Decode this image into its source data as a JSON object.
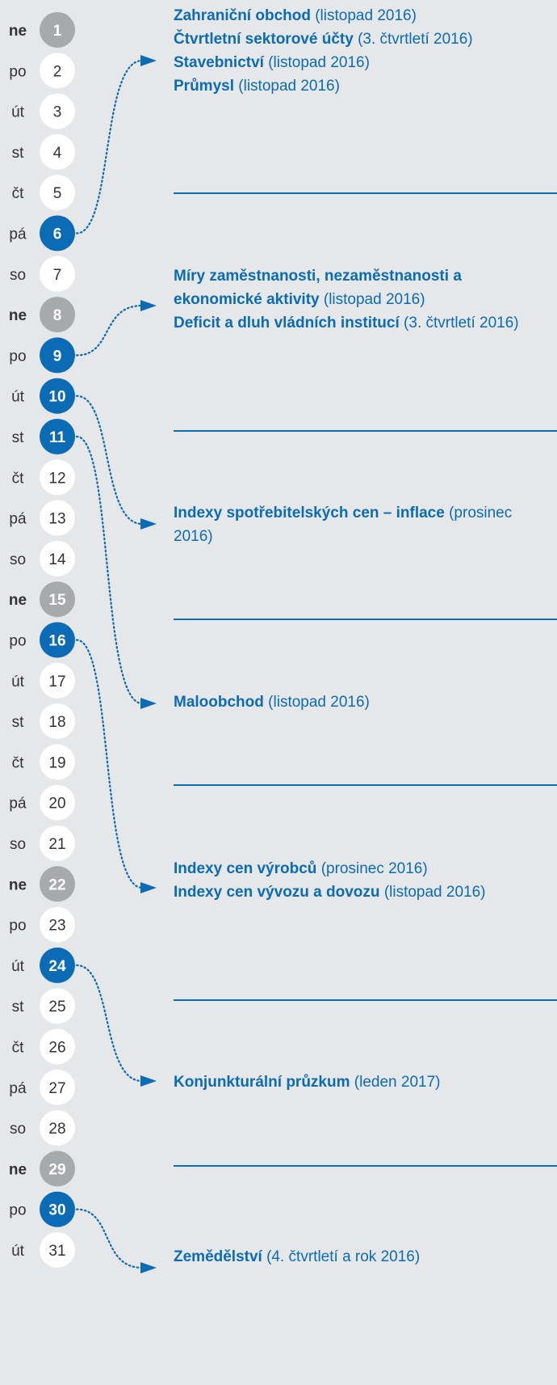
{
  "days": [
    {
      "weekday": "ne",
      "day": "1",
      "sunday": true
    },
    {
      "weekday": "po",
      "day": "2"
    },
    {
      "weekday": "út",
      "day": "3"
    },
    {
      "weekday": "st",
      "day": "4"
    },
    {
      "weekday": "čt",
      "day": "5"
    },
    {
      "weekday": "pá",
      "day": "6",
      "release": true
    },
    {
      "weekday": "so",
      "day": "7"
    },
    {
      "weekday": "ne",
      "day": "8",
      "sunday": true
    },
    {
      "weekday": "po",
      "day": "9",
      "release": true
    },
    {
      "weekday": "út",
      "day": "10",
      "release": true
    },
    {
      "weekday": "st",
      "day": "11",
      "release": true
    },
    {
      "weekday": "čt",
      "day": "12"
    },
    {
      "weekday": "pá",
      "day": "13"
    },
    {
      "weekday": "so",
      "day": "14"
    },
    {
      "weekday": "ne",
      "day": "15",
      "sunday": true
    },
    {
      "weekday": "po",
      "day": "16",
      "release": true
    },
    {
      "weekday": "út",
      "day": "17"
    },
    {
      "weekday": "st",
      "day": "18"
    },
    {
      "weekday": "čt",
      "day": "19"
    },
    {
      "weekday": "pá",
      "day": "20"
    },
    {
      "weekday": "so",
      "day": "21"
    },
    {
      "weekday": "ne",
      "day": "22",
      "sunday": true
    },
    {
      "weekday": "po",
      "day": "23"
    },
    {
      "weekday": "út",
      "day": "24",
      "release": true
    },
    {
      "weekday": "st",
      "day": "25"
    },
    {
      "weekday": "čt",
      "day": "26"
    },
    {
      "weekday": "pá",
      "day": "27"
    },
    {
      "weekday": "so",
      "day": "28"
    },
    {
      "weekday": "ne",
      "day": "29",
      "sunday": true
    },
    {
      "weekday": "po",
      "day": "30",
      "release": true
    },
    {
      "weekday": "út",
      "day": "31"
    }
  ],
  "events": [
    {
      "items": [
        {
          "name": "Zahraniční obchod",
          "period": "(listopad 2016)"
        },
        {
          "name": "Čtvrtletní sektorové účty",
          "period": "(3. čtvrtletí 2016)"
        },
        {
          "name": "Stavebnictví",
          "period": "(listopad 2016)"
        },
        {
          "name": "Průmysl",
          "period": "(listopad 2016)"
        }
      ]
    },
    {
      "items": [
        {
          "name": "Míry zaměstnanosti, nezaměstnanosti a ekonomické aktivity",
          "period": "(listopad 2016)"
        },
        {
          "name": "Deficit a dluh vládních institucí",
          "period": "(3. čtvrtletí 2016)"
        }
      ]
    },
    {
      "items": [
        {
          "name": "Indexy spotřebitelských cen – inflace",
          "period": "(prosinec 2016)"
        }
      ]
    },
    {
      "items": [
        {
          "name": "Maloobchod",
          "period": "(listopad 2016)"
        }
      ]
    },
    {
      "items": [
        {
          "name": "Indexy cen výrobců",
          "period": "(prosinec 2016)"
        },
        {
          "name": "Indexy cen vývozu a dovozu",
          "period": "(listopad 2016)"
        }
      ]
    },
    {
      "items": [
        {
          "name": "Konjunkturální průzkum",
          "period": "(leden 2017)"
        }
      ]
    },
    {
      "items": [
        {
          "name": "Zemědělství",
          "period": "(4. čtvrtletí a rok 2016)"
        }
      ]
    }
  ]
}
